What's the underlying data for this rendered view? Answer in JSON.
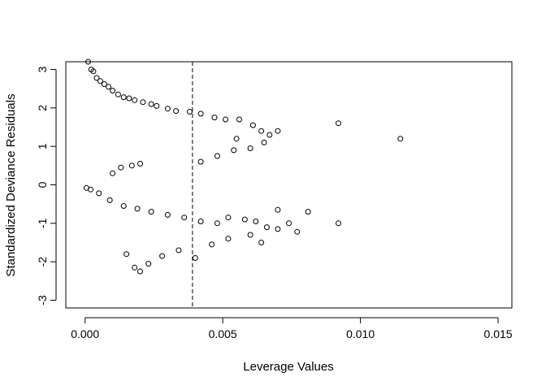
{
  "chart_data": {
    "type": "scatter",
    "title": "",
    "xlabel": "Leverage Values",
    "ylabel": "Standardized Deviance Residuals",
    "xlim": [
      -0.0007,
      0.0155
    ],
    "ylim": [
      -3.2,
      3.2
    ],
    "x_ticks": [
      0.0,
      0.005,
      0.01,
      0.015
    ],
    "x_tick_labels": [
      "0.000",
      "0.005",
      "0.010",
      "0.015"
    ],
    "y_ticks": [
      -3,
      -2,
      -1,
      0,
      1,
      2,
      3
    ],
    "y_tick_labels": [
      "-3",
      "-2",
      "-1",
      "0",
      "1",
      "2",
      "3"
    ],
    "reference_line": {
      "orientation": "vertical",
      "x": 0.0039,
      "style": "dashed"
    },
    "grid": false,
    "legend": "none",
    "marker": "open-circle",
    "marker_color": "#000000",
    "series": [
      {
        "points": [
          [
            0.00011,
            3.2
          ],
          [
            0.00022,
            3.0
          ],
          [
            0.0003,
            2.95
          ],
          [
            0.00042,
            2.78
          ],
          [
            0.00055,
            2.7
          ],
          [
            0.0007,
            2.62
          ],
          [
            0.00085,
            2.55
          ],
          [
            0.001,
            2.45
          ],
          [
            0.0012,
            2.35
          ],
          [
            0.0014,
            2.28
          ],
          [
            0.0016,
            2.25
          ],
          [
            0.0018,
            2.2
          ],
          [
            0.0021,
            2.15
          ],
          [
            0.0024,
            2.1
          ],
          [
            0.0026,
            2.05
          ],
          [
            0.003,
            1.98
          ],
          [
            0.0033,
            1.92
          ],
          [
            0.0038,
            1.9
          ],
          [
            0.0042,
            1.85
          ],
          [
            0.0047,
            1.75
          ],
          [
            0.0051,
            1.7
          ],
          [
            0.0056,
            1.7
          ],
          [
            0.0061,
            1.55
          ],
          [
            0.0064,
            1.4
          ],
          [
            0.0067,
            1.3
          ],
          [
            0.007,
            1.4
          ],
          [
            0.0092,
            1.6
          ],
          [
            0.01145,
            1.2
          ],
          [
            0.001,
            0.3
          ],
          [
            0.0013,
            0.45
          ],
          [
            0.0017,
            0.5
          ],
          [
            0.002,
            0.55
          ],
          [
            0.0042,
            0.6
          ],
          [
            0.0048,
            0.75
          ],
          [
            0.0054,
            0.9
          ],
          [
            0.006,
            0.95
          ],
          [
            0.0065,
            1.1
          ],
          [
            0.0055,
            1.2
          ],
          [
            5e-05,
            -0.08
          ],
          [
            0.0002,
            -0.12
          ],
          [
            0.0005,
            -0.22
          ],
          [
            0.0009,
            -0.4
          ],
          [
            0.0014,
            -0.55
          ],
          [
            0.0019,
            -0.62
          ],
          [
            0.0024,
            -0.7
          ],
          [
            0.003,
            -0.78
          ],
          [
            0.0036,
            -0.85
          ],
          [
            0.0042,
            -0.95
          ],
          [
            0.0048,
            -1.0
          ],
          [
            0.0052,
            -0.85
          ],
          [
            0.0058,
            -0.9
          ],
          [
            0.0062,
            -0.95
          ],
          [
            0.0066,
            -1.1
          ],
          [
            0.007,
            -0.65
          ],
          [
            0.007,
            -1.15
          ],
          [
            0.0074,
            -1.0
          ],
          [
            0.0077,
            -1.22
          ],
          [
            0.0081,
            -0.7
          ],
          [
            0.0092,
            -1.0
          ],
          [
            0.0015,
            -1.8
          ],
          [
            0.0018,
            -2.15
          ],
          [
            0.002,
            -2.25
          ],
          [
            0.0023,
            -2.05
          ],
          [
            0.0028,
            -1.85
          ],
          [
            0.0034,
            -1.7
          ],
          [
            0.004,
            -1.9
          ],
          [
            0.0046,
            -1.55
          ],
          [
            0.0052,
            -1.4
          ],
          [
            0.006,
            -1.3
          ],
          [
            0.0064,
            -1.5
          ]
        ]
      }
    ]
  }
}
